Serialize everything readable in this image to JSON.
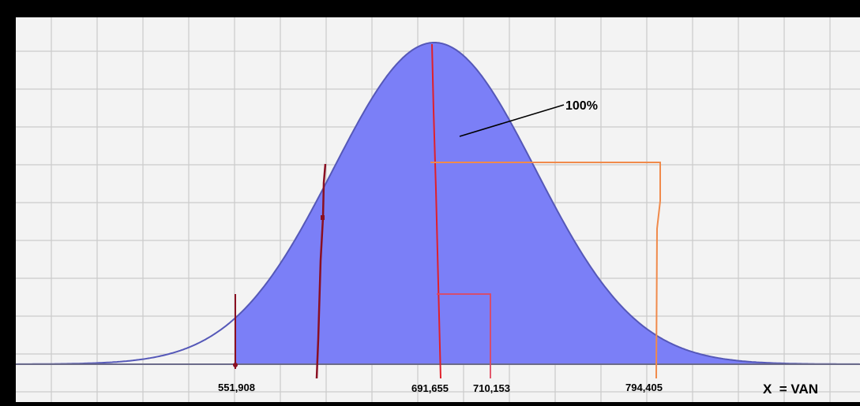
{
  "annotation_label": "100%",
  "axis": {
    "variable_label": "X  = VAN",
    "ticks": [
      "551,908",
      "691,655",
      "710,153",
      "794,405"
    ]
  },
  "colors": {
    "frame": "#000000",
    "paper": "#f3f3f3",
    "grid": "#c9c9c9",
    "fill": "#7b7ff7",
    "curve": "#5558b8",
    "red": "#e0202a",
    "darkred": "#8a0f22",
    "orange": "#f08a4b",
    "pink": "#e0485e"
  }
}
